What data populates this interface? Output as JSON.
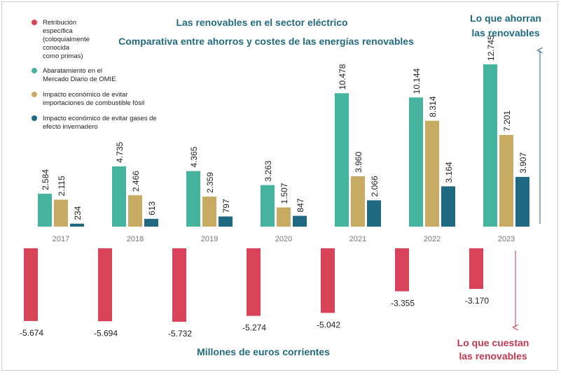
{
  "chart_data": {
    "type": "bar",
    "title": "Las renovables en el sector eléctrico",
    "subtitle": "Comparativa entre ahorros y costes de las energías renovables",
    "xlabel": "",
    "ylabel": "",
    "unit_note": "Millones de euros corrientes",
    "categories": [
      "2017",
      "2018",
      "2019",
      "2020",
      "2021",
      "2022",
      "2023"
    ],
    "series": [
      {
        "name": "Retribución específica (coloquialmente conocida como primas)",
        "name_lines": [
          "Retribución",
          "específica",
          "(coloquialmente",
          "conocida",
          "como primas)"
        ],
        "color": "#d9435a",
        "values": [
          -5674,
          -5694,
          -5732,
          -5274,
          -5042,
          -3355,
          -3170
        ],
        "labels": [
          "-5.674",
          "-5.694",
          "-5.732",
          "-5.274",
          "-5.042",
          "-3.355",
          "-3.170"
        ]
      },
      {
        "name": "Abaratamiento en el Mercado Diario de OMIE",
        "name_lines": [
          "Abaratamiento en el",
          "Mercado Diario de OMIE"
        ],
        "color": "#45b39d",
        "values": [
          2584,
          4735,
          4365,
          3263,
          10478,
          10144,
          12745
        ],
        "labels": [
          "2.584",
          "4.735",
          "4.365",
          "3.263",
          "10.478",
          "10.144",
          "12.745"
        ]
      },
      {
        "name": "Impacto económico de evitar importaciones de combustible fósil",
        "name_lines": [
          "Impacto económico de evitar",
          "importaciones de combustible fósil"
        ],
        "color": "#c8ab62",
        "values": [
          2115,
          2466,
          2359,
          1507,
          3960,
          8314,
          7201
        ],
        "labels": [
          "2.115",
          "2.466",
          "2.359",
          "1.507",
          "3.960",
          "8.314",
          "7.201"
        ]
      },
      {
        "name": "Impacto económico de evitar gases de efecto invernadero",
        "name_lines": [
          "Impacto económico de evitar gases de",
          "efecto invernadero"
        ],
        "color": "#1f6a80",
        "values": [
          234,
          613,
          797,
          847,
          2066,
          3164,
          3907
        ],
        "labels": [
          "234",
          "613",
          "797",
          "847",
          "2.066",
          "3.164",
          "3.907"
        ]
      }
    ],
    "annotations": {
      "savings": [
        "Lo que ahorran",
        "las renovables"
      ],
      "costs": [
        "Lo que cuestan",
        "las renovables"
      ]
    },
    "colors": {
      "title": "#236b7e",
      "savings": "#1f6a80",
      "costs": "#c23950",
      "tick": "#777777"
    },
    "legend_position": "top-left",
    "grid": false
  }
}
